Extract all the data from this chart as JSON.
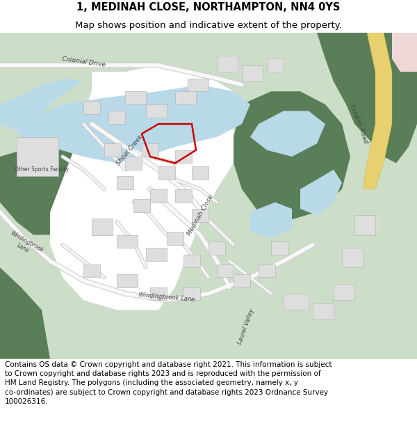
{
  "title_line1": "1, MEDINAH CLOSE, NORTHAMPTON, NN4 0YS",
  "title_line2": "Map shows position and indicative extent of the property.",
  "footer_text": "Contains OS data © Crown copyright and database right 2021. This information is subject to Crown copyright and database rights 2023 and is reproduced with the permission of HM Land Registry. The polygons (including the associated geometry, namely x, y co-ordinates) are subject to Crown copyright and database rights 2023 Ordnance Survey 100026316.",
  "title_fontsize": 10.5,
  "subtitle_fontsize": 9.5,
  "footer_fontsize": 7.5,
  "fig_width": 6.0,
  "fig_height": 6.25,
  "map_bg": "#f7f7f5",
  "water_color": "#b8d9e8",
  "grass_light": "#ccdec8",
  "grass_dark": "#5a7f58",
  "road_color": "#ffffff",
  "road_outline": "#c8c8c8",
  "building_color": "#dedede",
  "building_outline": "#b8b8b8",
  "road_yellow": "#e8d070",
  "road_pink": "#f0d0d0",
  "property_edge": "#cc0000",
  "property_lw": 1.8,
  "text_color": "#444444",
  "label_fontsize": 6.5
}
